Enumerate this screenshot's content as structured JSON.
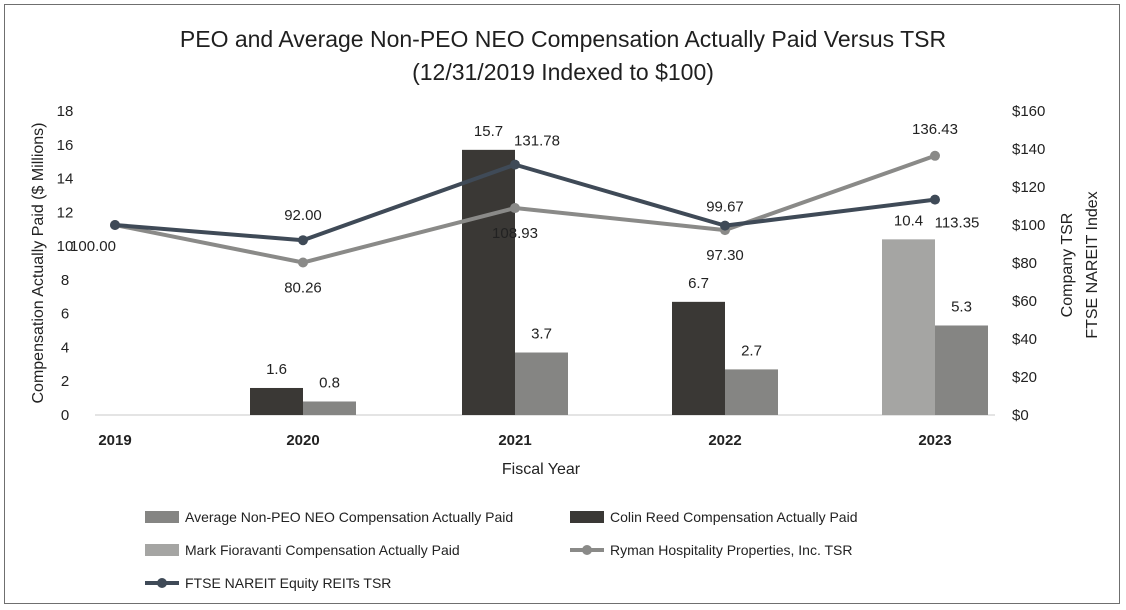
{
  "chart_data": {
    "type": "bar",
    "title_line1": "PEO and Average Non-PEO NEO Compensation Actually Paid Versus TSR",
    "title_line2": "(12/31/2019 Indexed to $100)",
    "xlabel": "Fiscal Year",
    "ylabel": "Compensation Actually Paid ($ Millions)",
    "y2label_line1": "Company TSR",
    "y2label_line2": "FTSE NAREIT Index",
    "categories": [
      "2019",
      "2020",
      "2021",
      "2022",
      "2023"
    ],
    "ylim": [
      0,
      18
    ],
    "yticks": [
      "0",
      "2",
      "4",
      "6",
      "8",
      "10",
      "12",
      "14",
      "16",
      "18"
    ],
    "y2lim": [
      0,
      160
    ],
    "y2ticks": [
      "$0",
      "$20",
      "$40",
      "$60",
      "$80",
      "$100",
      "$120",
      "$140",
      "$160"
    ],
    "bar_series": [
      {
        "name": "Colin Reed Compensation Actually Paid",
        "color": "#3a3835",
        "values": [
          null,
          1.6,
          15.7,
          6.7,
          null
        ],
        "labels": [
          "",
          "1.6",
          "15.7",
          "6.7",
          ""
        ]
      },
      {
        "name": "Mark Fioravanti Compensation Actually Paid",
        "color": "#a5a5a3",
        "values": [
          null,
          null,
          null,
          null,
          10.4
        ],
        "labels": [
          "",
          "",
          "",
          "",
          "10.4"
        ]
      },
      {
        "name": "Average Non-PEO NEO Compensation Actually Paid",
        "color": "#858583",
        "values": [
          null,
          0.8,
          3.7,
          2.7,
          5.3
        ],
        "labels": [
          "",
          "0.8",
          "3.7",
          "2.7",
          "5.3"
        ]
      }
    ],
    "line_series": [
      {
        "name": "Ryman Hospitality Properties, Inc. TSR",
        "color": "#8a8a88",
        "values": [
          100.0,
          80.26,
          108.93,
          97.3,
          136.43
        ],
        "labels": [
          "100.00",
          "80.26",
          "108.93",
          "97.30",
          "136.43"
        ]
      },
      {
        "name": "FTSE NAREIT Equity REITs TSR",
        "color": "#3f4a57",
        "values": [
          100.0,
          92.0,
          131.78,
          99.67,
          113.35
        ],
        "labels": [
          "100.00",
          "92.00",
          "131.78",
          "99.67",
          "113.35"
        ]
      }
    ],
    "legend": [
      "Average Non-PEO NEO Compensation Actually Paid",
      "Colin Reed Compensation Actually Paid",
      "Mark Fioravanti Compensation Actually Paid",
      "Ryman Hospitality Properties, Inc. TSR",
      "FTSE NAREIT Equity REITs TSR"
    ]
  }
}
